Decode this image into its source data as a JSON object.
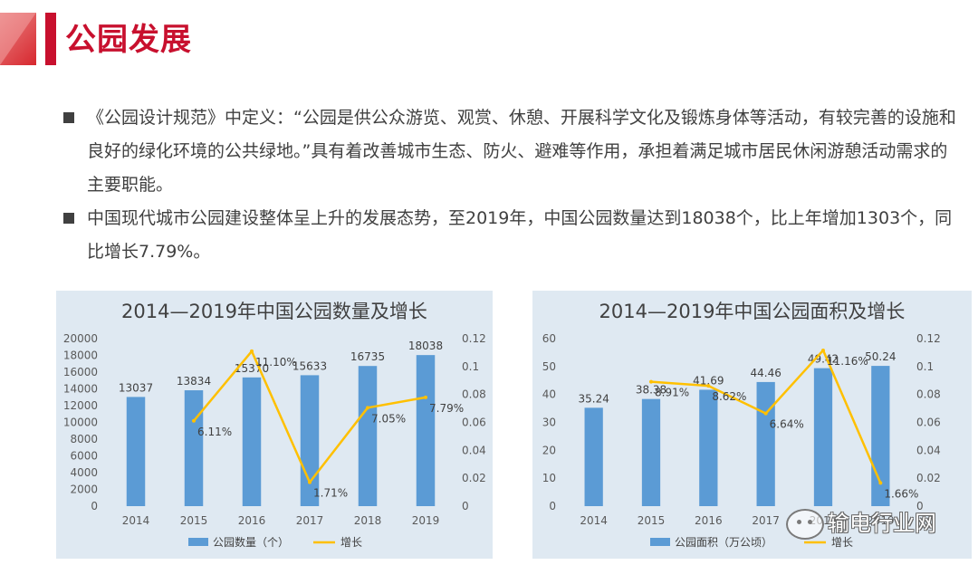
{
  "header": {
    "title": "公园发展"
  },
  "bullets": [
    {
      "text": "《公园设计规范》中定义：“公园是供公众游览、观赏、休憩、开展科学文化及锻炼身体等活动，有较完善的设施和良好的绿化环境的公共绿地。”具有着改善城市生态、防火、避难等作用，承担着满足城市居民休闲游憩活动需求的主要职能。"
    },
    {
      "text": "中国现代城市公园建设整体呈上升的发展态势，至2019年，中国公园数量达到18038个，比上年增加1303个，同比增长7.79%。"
    }
  ],
  "chart_data": [
    {
      "type": "bar",
      "title": "2014—2019年中国公园数量及增长",
      "categories": [
        "2014",
        "2015",
        "2016",
        "2017",
        "2018",
        "2019"
      ],
      "series": [
        {
          "name": "公园数量（个）",
          "type": "bar",
          "axis": "left",
          "values": [
            13037,
            13834,
            15370,
            15633,
            16735,
            18038
          ],
          "labels": [
            "13037",
            "13834",
            "15370",
            "15633",
            "16735",
            "18038"
          ],
          "color": "#5b9bd5"
        },
        {
          "name": "增长",
          "type": "line",
          "axis": "right",
          "values": [
            null,
            0.0611,
            0.111,
            0.0171,
            0.0705,
            0.0779
          ],
          "labels": [
            "",
            "6.11%",
            "11.10%",
            "1.71%",
            "7.05%",
            "7.79%"
          ],
          "color": "#ffc000"
        }
      ],
      "y_left": {
        "min": 0,
        "max": 20000,
        "step": 2000,
        "ticks": [
          "0",
          "2000",
          "4000",
          "6000",
          "8000",
          "10000",
          "12000",
          "14000",
          "16000",
          "18000",
          "20000"
        ]
      },
      "y_right": {
        "min": 0,
        "max": 0.12,
        "step": 0.02,
        "ticks": [
          "0",
          "0.02",
          "0.04",
          "0.06",
          "0.08",
          "0.1",
          "0.12"
        ]
      },
      "grid": false,
      "legend": "bottom"
    },
    {
      "type": "bar",
      "title": "2014—2019年中国公园面积及增长",
      "categories": [
        "2014",
        "2015",
        "2016",
        "2017",
        "2018",
        "2019"
      ],
      "series": [
        {
          "name": "公园面积（万公顷）",
          "type": "bar",
          "axis": "left",
          "values": [
            35.24,
            38.38,
            41.69,
            44.46,
            49.42,
            50.24
          ],
          "labels": [
            "35.24",
            "38.38",
            "41.69",
            "44.46",
            "49.42",
            "50.24"
          ],
          "color": "#5b9bd5"
        },
        {
          "name": "增长",
          "type": "line",
          "axis": "right",
          "values": [
            null,
            0.0891,
            0.0862,
            0.0664,
            0.1116,
            0.0166
          ],
          "labels": [
            "",
            "8.91%",
            "8.62%",
            "6.64%",
            "11.16%",
            "1.66%"
          ],
          "color": "#ffc000"
        }
      ],
      "y_left": {
        "min": 0,
        "max": 60,
        "step": 10,
        "ticks": [
          "0",
          "10",
          "20",
          "30",
          "40",
          "50",
          "60"
        ]
      },
      "y_right": {
        "min": 0,
        "max": 0.12,
        "step": 0.02,
        "ticks": [
          "0",
          "0.02",
          "0.04",
          "0.06",
          "0.08",
          "0.1",
          "0.12"
        ]
      },
      "grid": false,
      "legend": "bottom"
    }
  ],
  "watermark": {
    "text": "输电行业网",
    "icon": "wechat-icon"
  }
}
